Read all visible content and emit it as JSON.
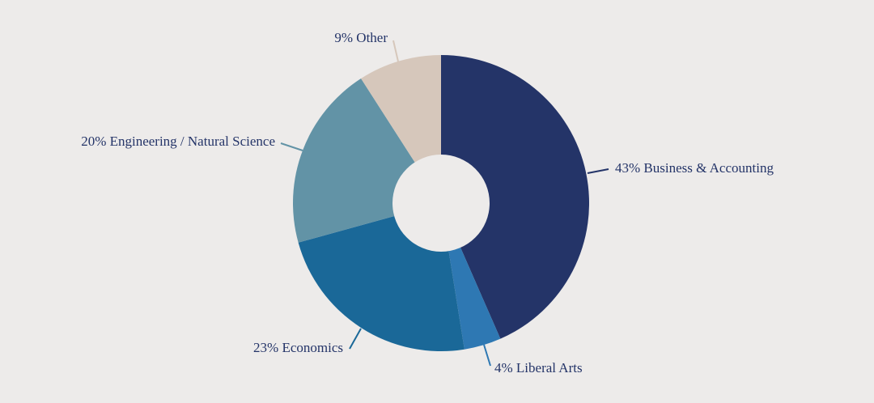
{
  "chart_data": {
    "type": "pie",
    "donut": true,
    "slices": [
      {
        "label": "43% Business & Accounting",
        "name": "Business & Accounting",
        "value": 43,
        "color": "#243468",
        "text_color": "#243468"
      },
      {
        "label": "4% Liberal Arts",
        "name": "Liberal Arts",
        "value": 4,
        "color": "#2e78b3",
        "text_color": "#243468"
      },
      {
        "label": "23% Economics",
        "name": "Economics",
        "value": 23,
        "color": "#1a6898",
        "text_color": "#243468"
      },
      {
        "label": "20% Engineering / Natural Science",
        "name": "Engineering / Natural Science",
        "value": 20,
        "color": "#6293a6",
        "text_color": "#243468"
      },
      {
        "label": "9% Other",
        "name": "Other",
        "value": 9,
        "color": "#d6c7bb",
        "text_color": "#243468"
      }
    ],
    "start": "12 o'clock",
    "direction": "clockwise",
    "background": "#edebea"
  }
}
